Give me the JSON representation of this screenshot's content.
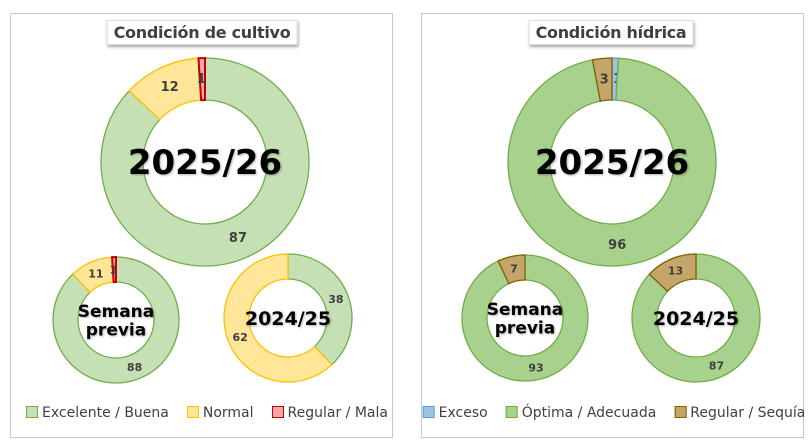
{
  "chart_data": [
    {
      "type": "donut",
      "title": "Condición de cultivo",
      "legend": [
        {
          "name": "Excelente / Buena",
          "fill": "#c5e0b4",
          "stroke": "#70ad47"
        },
        {
          "name": "Normal",
          "fill": "#ffe699",
          "stroke": "#ffc000"
        },
        {
          "name": "Regular / Mala",
          "fill": "#f4a6a6",
          "stroke": "#c00000"
        }
      ],
      "rings": [
        {
          "label": "2025/26",
          "values": [
            87,
            12,
            1
          ],
          "labels": [
            "87",
            "12",
            "1"
          ]
        },
        {
          "label": "Semana previa",
          "values": [
            88,
            11,
            1
          ],
          "labels": [
            "88",
            "11",
            "1"
          ]
        },
        {
          "label": "2024/25",
          "values": [
            38,
            62,
            0
          ],
          "labels": [
            "38",
            "62",
            ""
          ]
        }
      ]
    },
    {
      "type": "donut",
      "title": "Condición hídrica",
      "legend": [
        {
          "name": "Exceso",
          "fill": "#9dc3e6",
          "stroke": "#5b9bd5"
        },
        {
          "name": "Óptima / Adecuada",
          "fill": "#a9d18e",
          "stroke": "#70ad47"
        },
        {
          "name": "Regular / Sequía",
          "fill": "#c4a56a",
          "stroke": "#7f6000"
        }
      ],
      "rings": [
        {
          "label": "2025/26",
          "values": [
            1,
            96,
            3
          ],
          "labels": [
            "1",
            "96",
            "3"
          ]
        },
        {
          "label": "Semana previa",
          "values": [
            0,
            93,
            7
          ],
          "labels": [
            "",
            "93",
            "7"
          ]
        },
        {
          "label": "2024/25",
          "values": [
            0,
            87,
            13
          ],
          "labels": [
            "",
            "87",
            "13"
          ]
        }
      ]
    }
  ]
}
